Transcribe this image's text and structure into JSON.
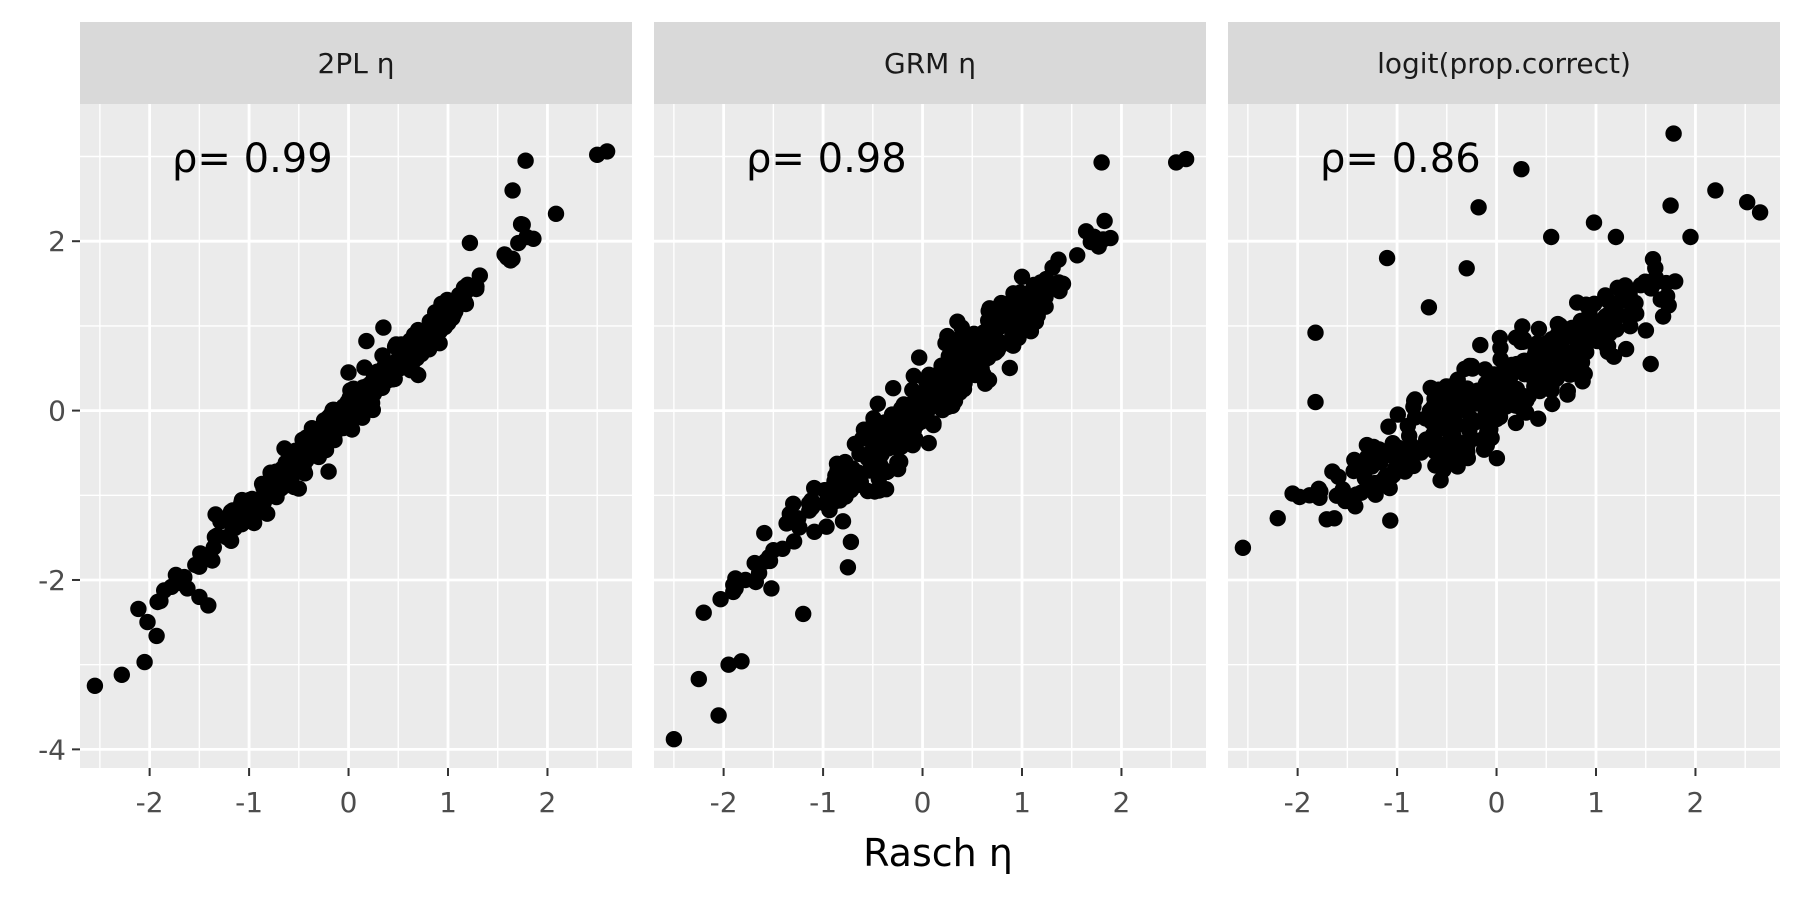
{
  "chart_data": {
    "type": "scatter",
    "xlabel": "Rasch η",
    "ylabel": "",
    "xlim": [
      -2.7,
      2.85
    ],
    "ylim": [
      -4.22,
      3.62
    ],
    "x_ticks": [
      -2,
      -1,
      0,
      1,
      2
    ],
    "y_ticks": [
      -4,
      -2,
      0,
      2
    ],
    "grid": true,
    "point_color": "#000000",
    "panel_background": "#ebebeb",
    "strip_background": "#d9d9d9",
    "panels": [
      {
        "strip": "2PL  η",
        "rho_label": "ρ= 0.99",
        "rho_value": 0.99,
        "generator": {
          "slope": 1.15,
          "intercept": 0.0,
          "noise_sd": 0.12,
          "seed": 11
        },
        "points": [
          [
            -2.55,
            -3.25
          ],
          [
            -2.28,
            -3.12
          ],
          [
            -2.05,
            -2.97
          ],
          [
            -1.93,
            -2.66
          ],
          [
            -1.92,
            -2.26
          ],
          [
            -1.78,
            -2.08
          ],
          [
            -1.62,
            -2.1
          ],
          [
            -1.5,
            -2.2
          ],
          [
            -1.41,
            -2.3
          ],
          [
            -1.37,
            -1.77
          ],
          [
            1.22,
            1.98
          ],
          [
            1.65,
            2.6
          ],
          [
            1.78,
            2.95
          ],
          [
            2.5,
            3.02
          ],
          [
            2.6,
            3.06
          ],
          [
            0.7,
            0.42
          ],
          [
            0.0,
            0.45
          ],
          [
            0.35,
            0.98
          ],
          [
            0.18,
            0.82
          ],
          [
            -0.2,
            -0.72
          ]
        ]
      },
      {
        "strip": "GRM  η",
        "rho_label": "ρ= 0.98",
        "rho_value": 0.98,
        "generator": {
          "slope": 1.1,
          "intercept": 0.05,
          "noise_sd": 0.2,
          "seed": 23
        },
        "points": [
          [
            -2.5,
            -3.88
          ],
          [
            -2.25,
            -3.17
          ],
          [
            -2.05,
            -3.6
          ],
          [
            -1.95,
            -3.0
          ],
          [
            -1.82,
            -2.96
          ],
          [
            -1.88,
            -2.1
          ],
          [
            -1.78,
            -2.0
          ],
          [
            -1.52,
            -2.1
          ],
          [
            -1.2,
            -2.4
          ],
          [
            -0.75,
            -1.85
          ],
          [
            -0.72,
            -1.55
          ],
          [
            -1.3,
            -1.1
          ],
          [
            1.8,
            2.93
          ],
          [
            2.55,
            2.93
          ],
          [
            2.65,
            2.97
          ],
          [
            0.35,
            1.05
          ],
          [
            1.0,
            1.58
          ],
          [
            0.55,
            0.42
          ],
          [
            0.25,
            0.88
          ],
          [
            -0.45,
            0.08
          ]
        ]
      },
      {
        "strip": "logit(prop.correct)",
        "rho_label": "ρ= 0.86",
        "rho_value": 0.86,
        "generator": {
          "slope": 0.72,
          "intercept": 0.22,
          "noise_sd": 0.28,
          "seed": 37
        },
        "points": [
          [
            -2.55,
            -1.62
          ],
          [
            -2.05,
            -0.98
          ],
          [
            -1.98,
            -1.02
          ],
          [
            -1.88,
            -1.0
          ],
          [
            -1.78,
            -1.03
          ],
          [
            -1.42,
            -1.13
          ],
          [
            -1.82,
            0.92
          ],
          [
            -1.65,
            -0.72
          ],
          [
            -1.1,
            1.8
          ],
          [
            -1.82,
            0.1
          ],
          [
            -0.68,
            1.22
          ],
          [
            -0.3,
            1.68
          ],
          [
            -0.18,
            2.4
          ],
          [
            0.25,
            2.85
          ],
          [
            1.78,
            3.27
          ],
          [
            0.98,
            2.22
          ],
          [
            1.75,
            2.42
          ],
          [
            2.2,
            2.6
          ],
          [
            2.52,
            2.46
          ],
          [
            2.65,
            2.34
          ],
          [
            1.55,
            0.55
          ],
          [
            0.3,
            0.12
          ],
          [
            0.55,
            2.05
          ],
          [
            1.2,
            2.05
          ],
          [
            -0.05,
            -0.12
          ],
          [
            -0.55,
            -0.05
          ],
          [
            -1.3,
            -0.55
          ],
          [
            0.9,
            1.25
          ],
          [
            1.95,
            2.05
          ],
          [
            1.45,
            1.48
          ]
        ]
      }
    ]
  }
}
